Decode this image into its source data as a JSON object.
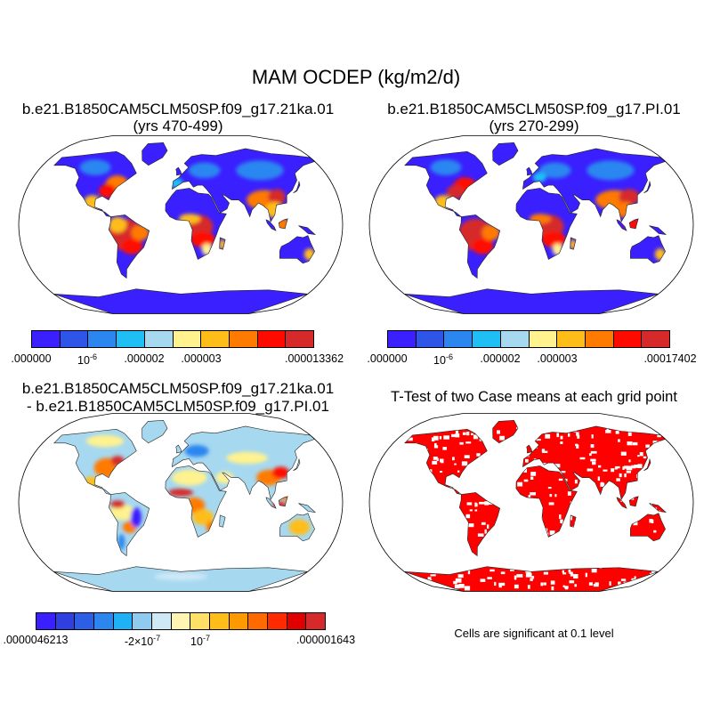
{
  "title": "MAM OCDEP (kg/m2/d)",
  "panels": [
    {
      "title_line1": "b.e21.B1850CAM5CLM50SP.f09_g17.21ka.01",
      "title_line2": "(yrs 470-499)"
    },
    {
      "title_line1": "b.e21.B1850CAM5CLM50SP.f09_g17.PI.01",
      "title_line2": "(yrs 270-299)"
    },
    {
      "title_line1": "b.e21.B1850CAM5CLM50SP.f09_g17.21ka.01",
      "title_line2": "- b.e21.B1850CAM5CLM50SP.f09_g17.PI.01"
    },
    {
      "title_line1": "T-Test of two Case means at each grid point"
    }
  ],
  "colorbars": [
    {
      "colors": [
        "#3a1fff",
        "#2f55e8",
        "#2b86f0",
        "#1fbff5",
        "#a6d8f0",
        "#fff28f",
        "#ffbd1a",
        "#ff7a00",
        "#ff0a00",
        "#d62a2a"
      ],
      "labels": [
        ".000000",
        "10",
        ".000002",
        ".000003",
        ".000013362"
      ],
      "label_sup": [
        "",
        "-6",
        "",
        "",
        ""
      ]
    },
    {
      "colors": [
        "#3a1fff",
        "#2f55e8",
        "#2b86f0",
        "#1fbff5",
        "#a6d8f0",
        "#fff28f",
        "#ffbd1a",
        "#ff7a00",
        "#ff0a00",
        "#d62a2a"
      ],
      "labels": [
        ".000000",
        "10",
        ".000002",
        ".000003",
        ".00017402"
      ],
      "label_sup": [
        "",
        "-6",
        "",
        "",
        ""
      ]
    },
    {
      "colors": [
        "#3a1fff",
        "#2f3fe0",
        "#2d5ee6",
        "#2b86f0",
        "#1fb0f5",
        "#8fcbf0",
        "#cfe8f5",
        "#fff5b0",
        "#ffe066",
        "#ffbd1a",
        "#ff9900",
        "#ff6a00",
        "#ff2a00",
        "#e00000",
        "#d62a2a"
      ],
      "labels": [
        ".0000046213",
        "-2×10",
        "10",
        ".000001643"
      ],
      "label_sup": [
        "",
        "-7",
        "-7",
        ""
      ]
    }
  ],
  "note": "Cells are significant at 0.1 level"
}
